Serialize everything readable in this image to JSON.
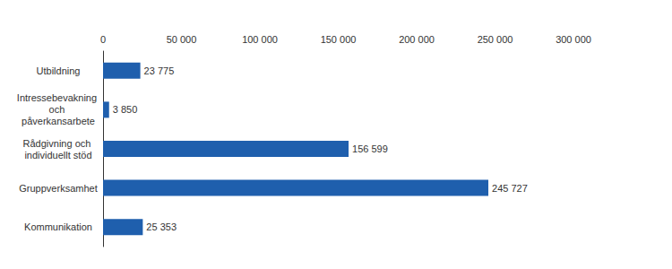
{
  "chart_data": {
    "type": "bar",
    "orientation": "horizontal",
    "categories": [
      "Utbildning",
      "Intressebevakning och påverkansarbete",
      "Rådgivning och individuellt stöd",
      "Gruppverksamhet",
      "Kommunikation"
    ],
    "values": [
      23775,
      3850,
      156599,
      245727,
      25353
    ],
    "value_labels": [
      "23 775",
      "3 850",
      "156 599",
      "245 727",
      "25 353"
    ],
    "color": "#1f5fad",
    "xlim": [
      0,
      300000
    ],
    "xticks": [
      {
        "value": 0,
        "label": "0"
      },
      {
        "value": 50000,
        "label": "50 000"
      },
      {
        "value": 100000,
        "label": "100 000"
      },
      {
        "value": 150000,
        "label": "150 000"
      },
      {
        "value": 200000,
        "label": "200 000"
      },
      {
        "value": 250000,
        "label": "250 000"
      },
      {
        "value": 300000,
        "label": "300 000"
      }
    ],
    "grid": false,
    "data_labels": true
  }
}
